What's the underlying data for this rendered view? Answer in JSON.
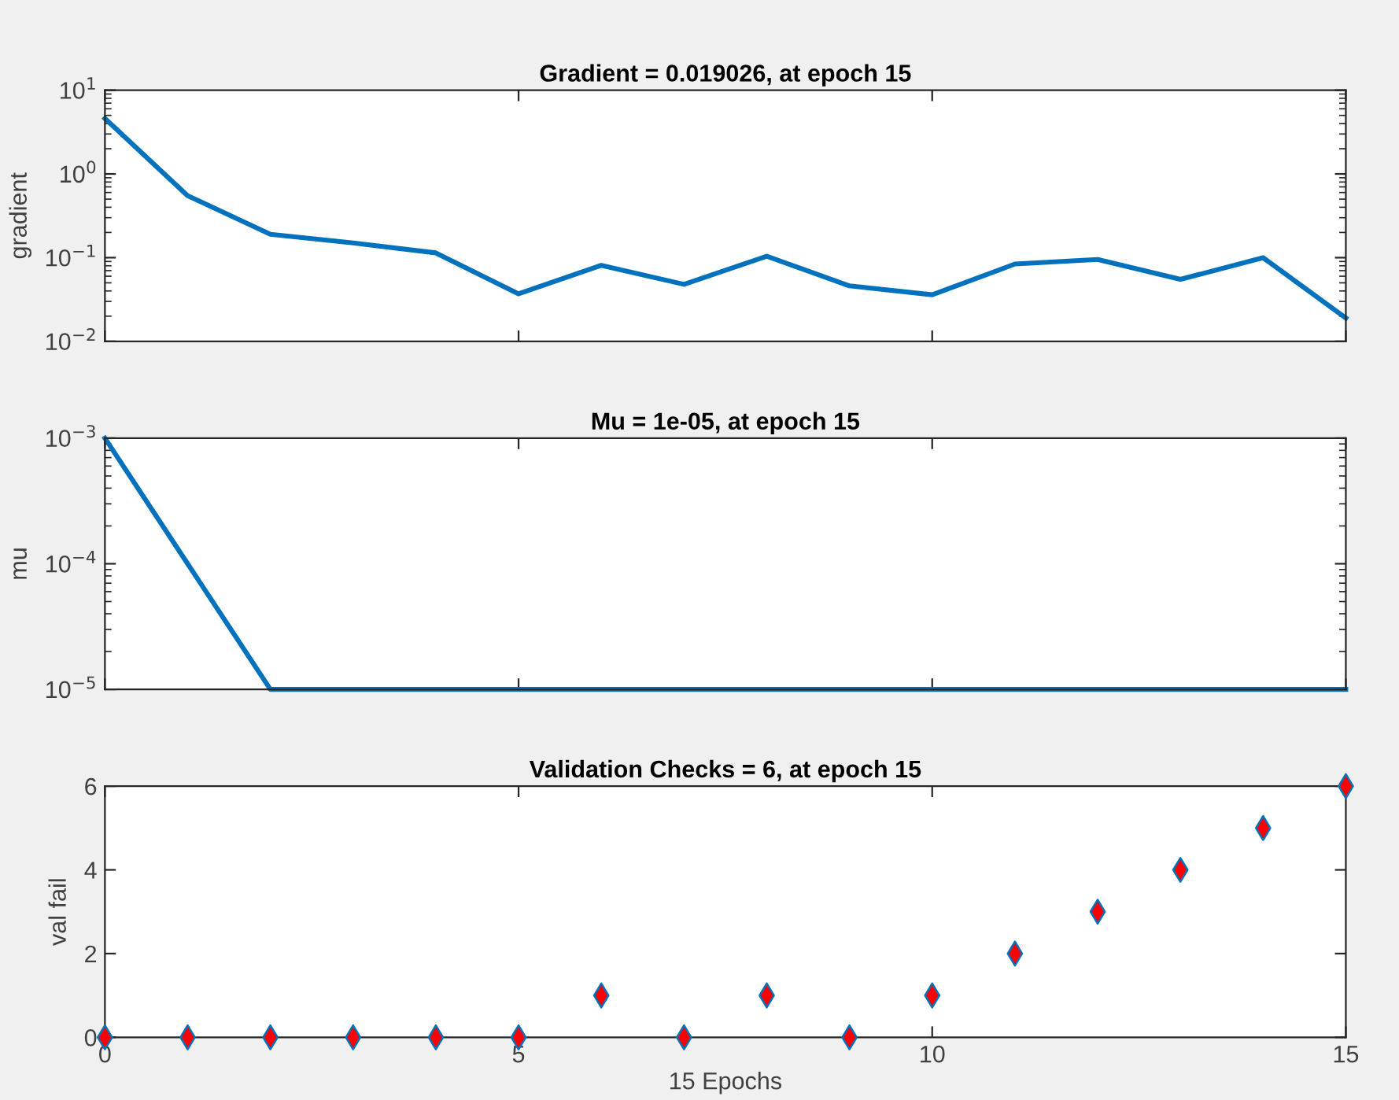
{
  "chart_data": [
    {
      "type": "line",
      "title": "Gradient = 0.019026, at epoch 15",
      "ylabel": "gradient",
      "x": [
        0,
        1,
        2,
        3,
        4,
        5,
        6,
        7,
        8,
        9,
        10,
        11,
        12,
        13,
        14,
        15
      ],
      "series": [
        {
          "color": "#0072bd",
          "values": [
            4.6,
            0.55,
            0.19,
            0.15,
            0.114,
            0.037,
            0.081,
            0.048,
            0.104,
            0.046,
            0.036,
            0.084,
            0.095,
            0.055,
            0.1,
            0.019026
          ]
        }
      ],
      "log": "y",
      "xlim": [
        0,
        15
      ],
      "xticks": [
        0,
        5,
        10,
        15
      ],
      "ylim": [
        0.01,
        10
      ],
      "yticks": [
        {
          "value": 0.01,
          "label": "10$^{−2}$"
        },
        {
          "value": 0.1,
          "label": "10$^{−1}$"
        },
        {
          "value": 1,
          "label": "10$^{0}$"
        },
        {
          "value": 10,
          "label": "10$^{1}$"
        }
      ],
      "tick_labels": "y"
    },
    {
      "type": "line",
      "title": "Mu = 1e-05, at epoch 15",
      "ylabel": "mu",
      "x": [
        0,
        1,
        2,
        3,
        4,
        5,
        6,
        7,
        8,
        9,
        10,
        11,
        12,
        13,
        14,
        15
      ],
      "series": [
        {
          "color": "#0072bd",
          "values": [
            0.001,
            0.0001,
            1e-05,
            1e-05,
            1e-05,
            1e-05,
            1e-05,
            1e-05,
            1e-05,
            1e-05,
            1e-05,
            1e-05,
            1e-05,
            1e-05,
            1e-05,
            1e-05
          ]
        }
      ],
      "log": "y",
      "xlim": [
        0,
        15
      ],
      "xticks": [
        0,
        5,
        10,
        15
      ],
      "ylim": [
        1e-05,
        0.001
      ],
      "yticks": [
        {
          "value": 1e-05,
          "label": "10$^{−5}$"
        },
        {
          "value": 0.0001,
          "label": "10$^{−4}$"
        },
        {
          "value": 0.001,
          "label": "10$^{−3}$"
        }
      ],
      "tick_labels": "y"
    },
    {
      "type": "scatter",
      "title": "Validation Checks = 6, at epoch 15",
      "xlabel": "15 Epochs",
      "ylabel": "val fail",
      "x": [
        0,
        1,
        2,
        3,
        4,
        5,
        6,
        7,
        8,
        9,
        10,
        11,
        12,
        13,
        14,
        15
      ],
      "series": [
        {
          "color": "#ff0000",
          "values": [
            0,
            0,
            0,
            0,
            0,
            0,
            1,
            0,
            1,
            0,
            1,
            2,
            3,
            4,
            5,
            6
          ]
        }
      ],
      "marker": "diamond",
      "xlim": [
        0,
        15
      ],
      "xticks": [
        0,
        5,
        10,
        15
      ],
      "ylim": [
        0,
        6
      ],
      "yticks": [
        0,
        2,
        4,
        6
      ]
    }
  ]
}
